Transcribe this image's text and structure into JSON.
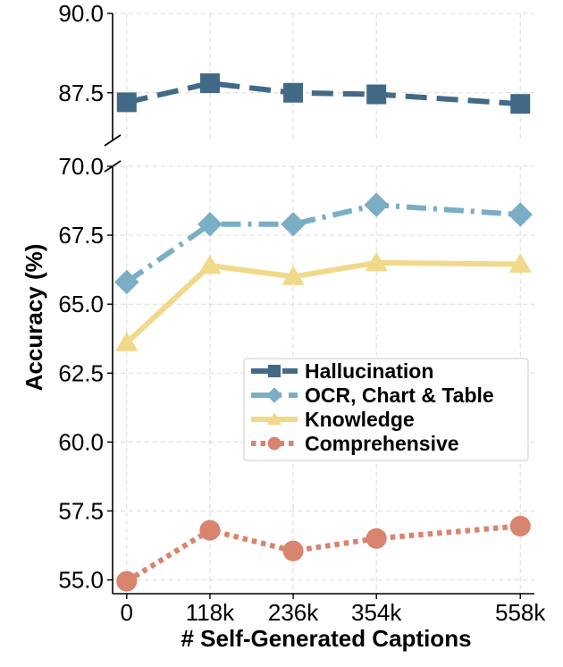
{
  "chart_data": {
    "type": "line",
    "xlabel": "# Self-Generated Captions",
    "ylabel": "Accuracy (%)",
    "x": [
      0,
      118,
      236,
      354,
      558
    ],
    "x_tick_labels": [
      "0",
      "118k",
      "236k",
      "354k",
      "558k"
    ],
    "broken_axis": true,
    "upper_ylim": [
      86.0,
      90.0
    ],
    "upper_yticks": [
      "87.5",
      "90.0"
    ],
    "lower_ylim": [
      54.5,
      70.0
    ],
    "lower_yticks": [
      "55.0",
      "57.5",
      "60.0",
      "62.5",
      "65.0",
      "67.5",
      "70.0"
    ],
    "grid": true,
    "legend_position": "center-right",
    "series": [
      {
        "name": "Hallucination",
        "values": [
          87.2,
          87.8,
          87.5,
          87.45,
          87.15
        ],
        "color": "#426a87",
        "marker": "square",
        "line_style": "dashed",
        "panel": "upper"
      },
      {
        "name": "OCR, Chart & Table",
        "values": [
          65.8,
          67.9,
          67.9,
          68.6,
          68.25
        ],
        "color": "#7aaec4",
        "marker": "diamond",
        "line_style": "dashdot",
        "panel": "lower"
      },
      {
        "name": "Knowledge",
        "values": [
          63.6,
          66.4,
          66.0,
          66.5,
          66.45
        ],
        "color": "#f1d98a",
        "marker": "triangle",
        "line_style": "solid",
        "panel": "lower"
      },
      {
        "name": "Comprehensive",
        "values": [
          54.95,
          56.8,
          56.05,
          56.5,
          56.95
        ],
        "color": "#d9846e",
        "marker": "circle",
        "line_style": "dotted",
        "panel": "lower"
      }
    ]
  }
}
